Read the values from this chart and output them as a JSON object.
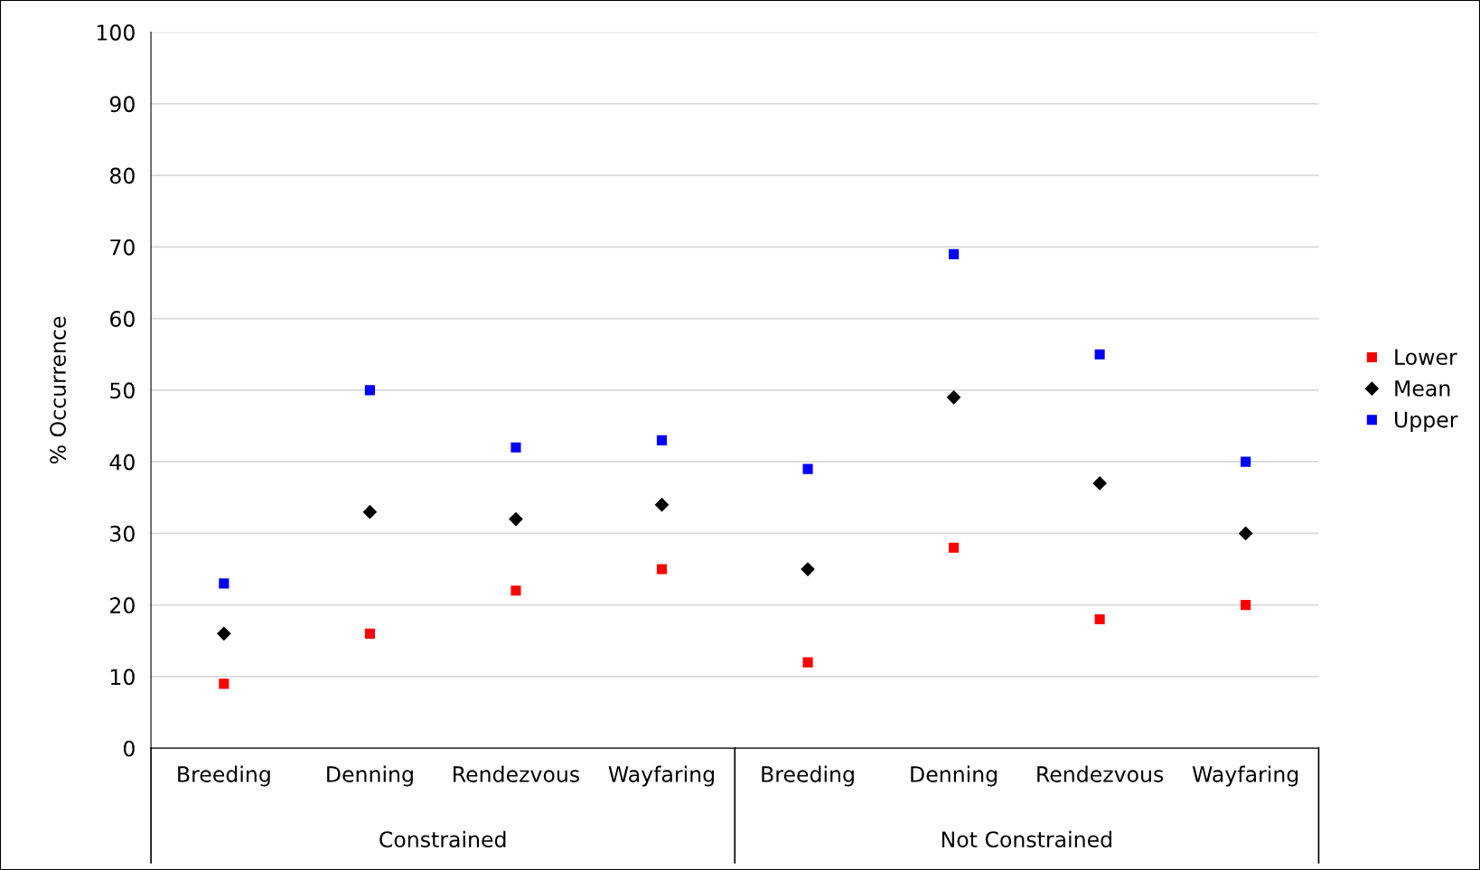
{
  "chart_data": {
    "type": "scatter",
    "ylabel": "% Occurrence",
    "categories": [
      "Breeding",
      "Denning",
      "Rendezvous",
      "Wayfaring",
      "Breeding",
      "Denning",
      "Rendezvous",
      "Wayfaring"
    ],
    "series": [
      {
        "name": "Lower",
        "color": "#ff0000",
        "marker": "square",
        "values": [
          9,
          16,
          22,
          25,
          12,
          28,
          18,
          20
        ]
      },
      {
        "name": "Mean",
        "color": "#000000",
        "marker": "diamond",
        "values": [
          16,
          33,
          32,
          34,
          25,
          49,
          37,
          30
        ]
      },
      {
        "name": "Upper",
        "color": "#0000ff",
        "marker": "square",
        "values": [
          23,
          50,
          42,
          43,
          39,
          69,
          55,
          40
        ]
      }
    ],
    "annotations": [
      "Constrained",
      "Not Constrained"
    ],
    "ylim": [
      0,
      100
    ],
    "yticks": [
      0,
      10,
      20,
      30,
      40,
      50,
      60,
      70,
      80,
      90,
      100
    ],
    "grid": "y",
    "legend": "right"
  }
}
